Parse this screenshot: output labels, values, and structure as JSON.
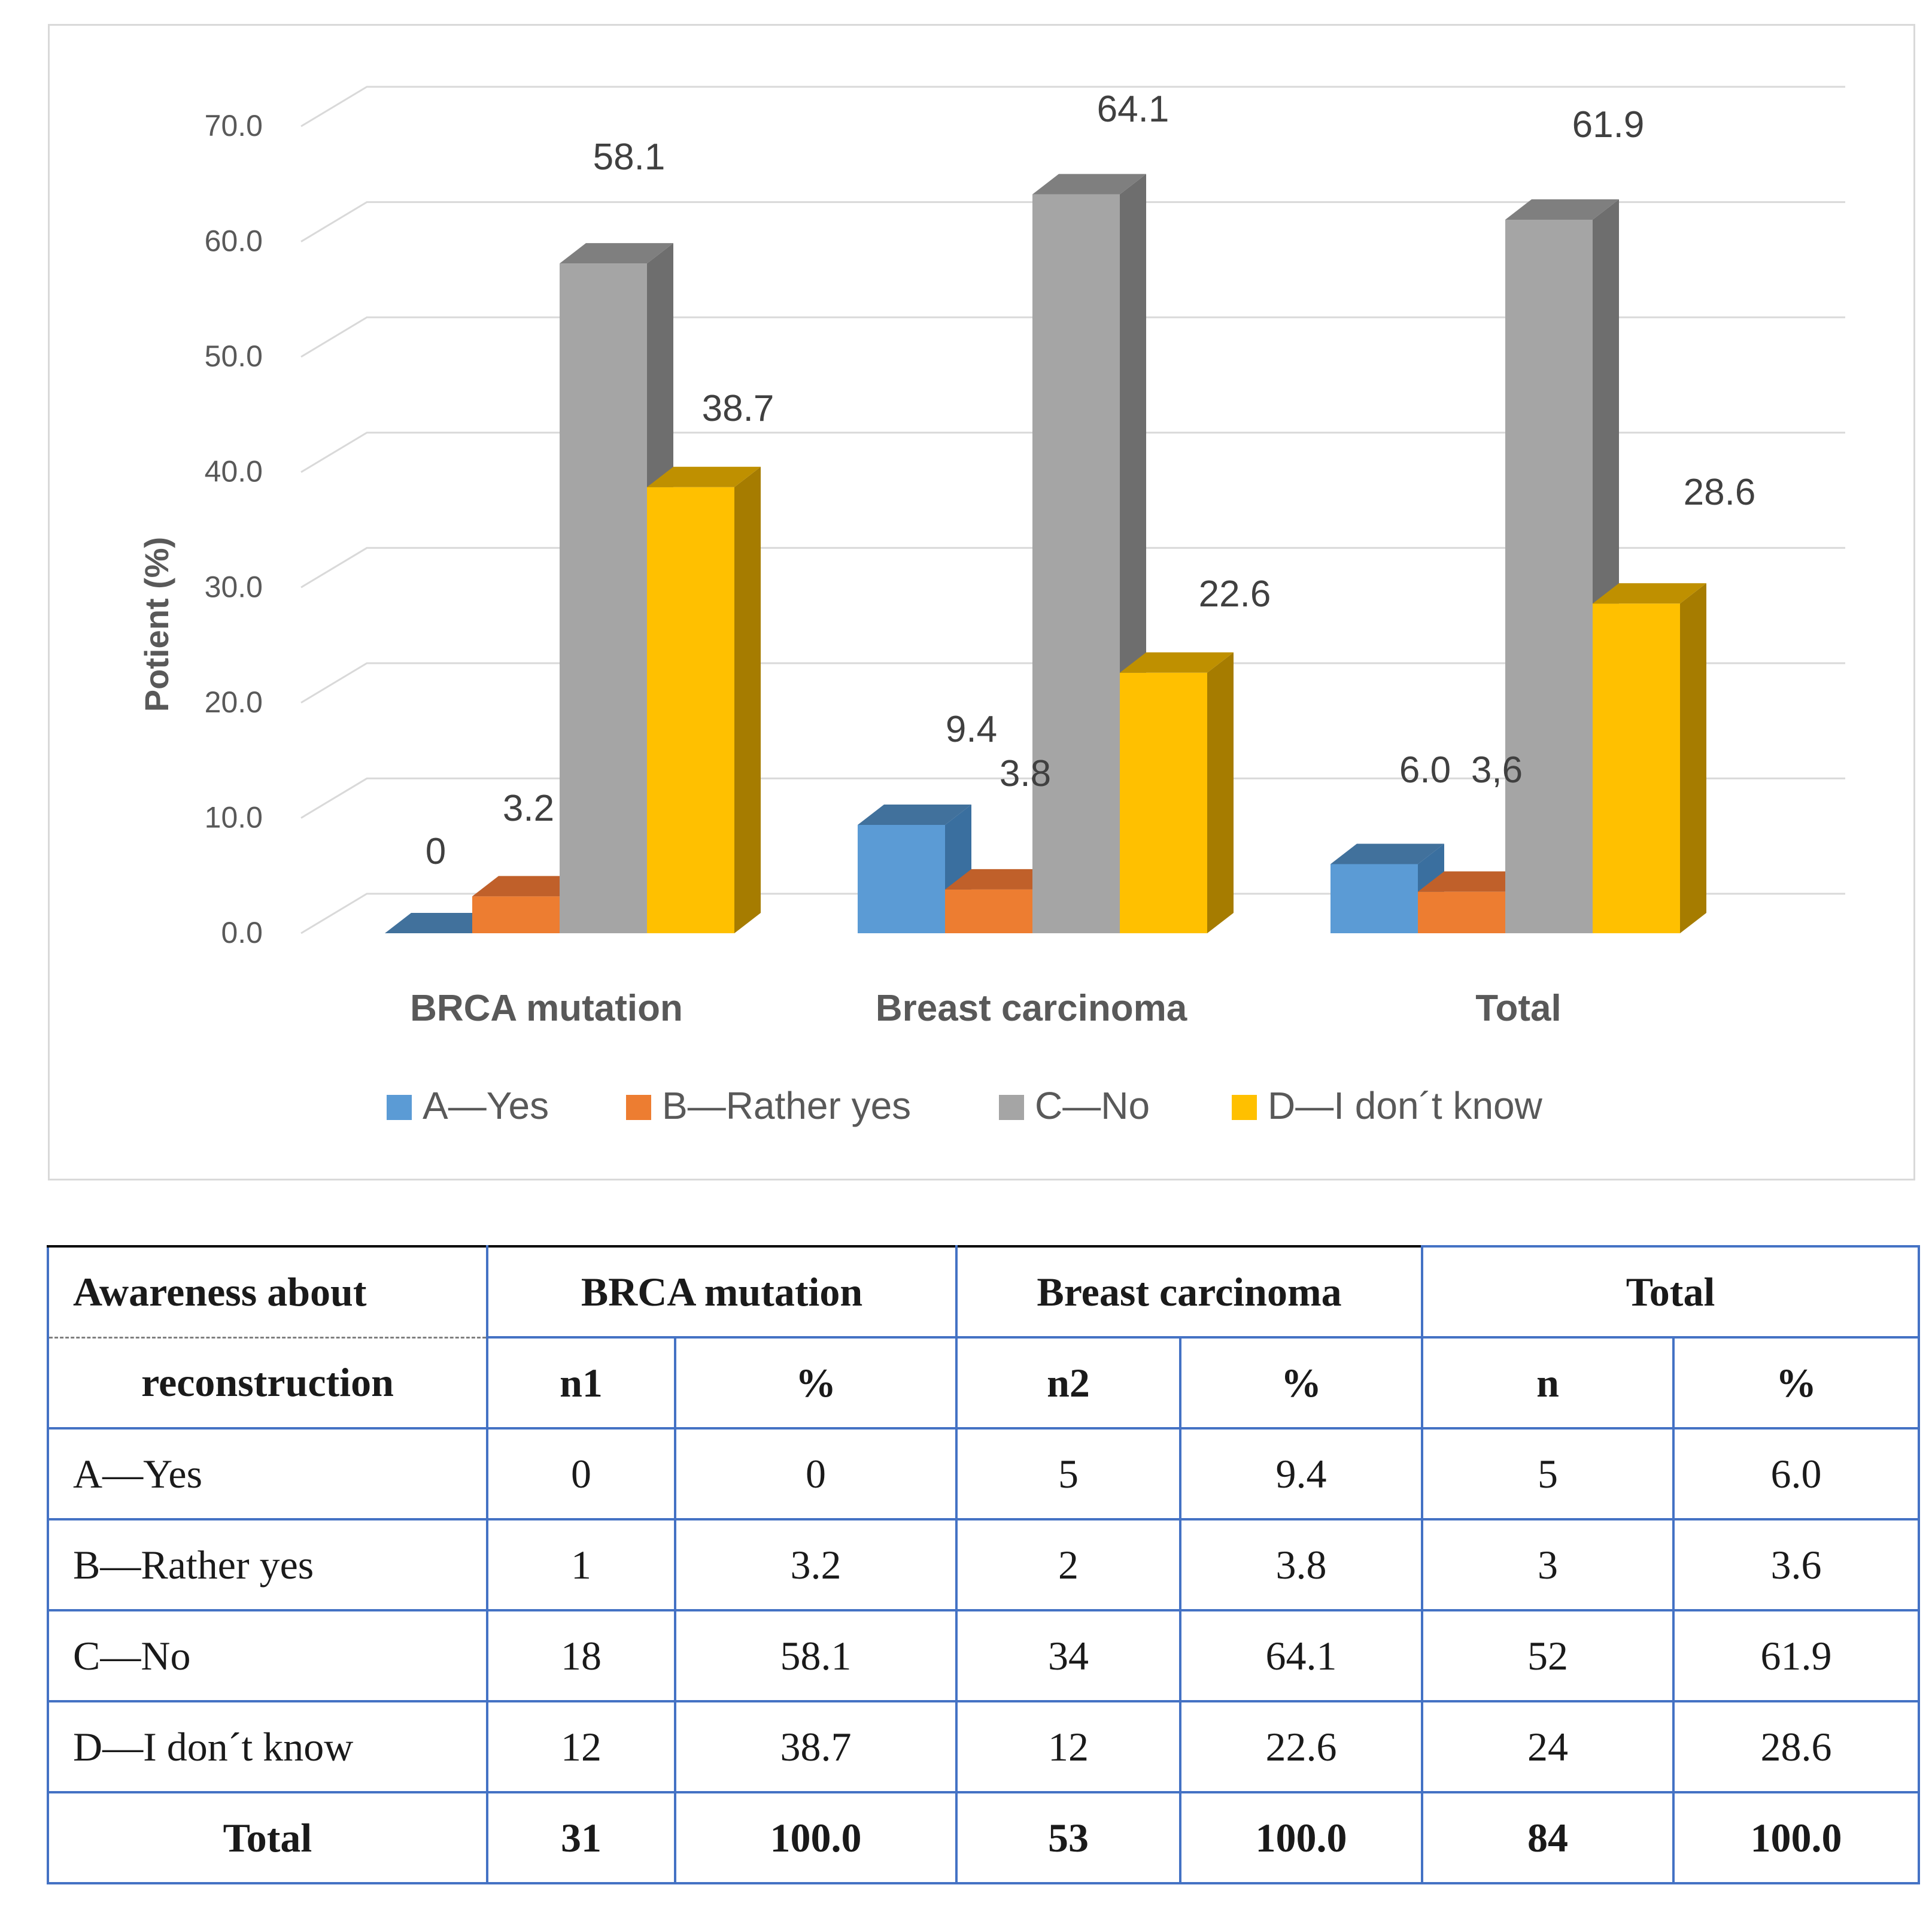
{
  "chart_data": {
    "type": "bar",
    "style": "3d-clustered-column",
    "categories": [
      "BRCA mutation",
      "Breast carcinoma",
      "Total"
    ],
    "series": [
      {
        "name": "A—Yes",
        "color": "#5b9bd5",
        "side_color": "#3a6f9f",
        "top_color": "#41719c",
        "values": [
          0,
          9.4,
          6.0
        ],
        "labels": [
          "0",
          "9.4",
          "6.0"
        ]
      },
      {
        "name": "B—Rather yes",
        "color": "#ed7d31",
        "side_color": "#a9561e",
        "top_color": "#c0602a",
        "values": [
          3.2,
          3.8,
          3.6
        ],
        "labels": [
          "3.2",
          "3.8",
          "3,6"
        ]
      },
      {
        "name": "C—No",
        "color": "#a5a5a5",
        "side_color": "#6e6e6e",
        "top_color": "#7f7f7f",
        "values": [
          58.1,
          64.1,
          61.9
        ],
        "labels": [
          "58.1",
          "64.1",
          "61.9"
        ]
      },
      {
        "name": "D—I don´t know",
        "color": "#ffc000",
        "side_color": "#a67c00",
        "top_color": "#bf9000",
        "values": [
          38.7,
          22.6,
          28.6
        ],
        "labels": [
          "38.7",
          "22.6",
          "28.6"
        ]
      }
    ],
    "ylabel": "Potient (%)",
    "xlabel": "",
    "ylim": [
      0,
      70
    ],
    "yticks": [
      "0.0",
      "10.0",
      "20.0",
      "30.0",
      "40.0",
      "50.0",
      "60.0",
      "70.0"
    ],
    "grid": true,
    "legend": "bottom"
  },
  "table": {
    "header_row1": {
      "label": "Awareness about",
      "groups": [
        "BRCA mutation",
        "Breast carcinoma",
        "Total"
      ]
    },
    "header_row2": {
      "label": "reconstruction",
      "cols": [
        "n1",
        "%",
        "n2",
        "%",
        "n",
        "%"
      ]
    },
    "rows": [
      {
        "label": "A—Yes",
        "cells": [
          "0",
          "0",
          "5",
          "9.4",
          "5",
          "6.0"
        ]
      },
      {
        "label": "B—Rather yes",
        "cells": [
          "1",
          "3.2",
          "2",
          "3.8",
          "3",
          "3.6"
        ]
      },
      {
        "label": "C—No",
        "cells": [
          "18",
          "58.1",
          "34",
          "64.1",
          "52",
          "61.9"
        ]
      },
      {
        "label": "D—I don´t know",
        "cells": [
          "12",
          "38.7",
          "12",
          "22.6",
          "24",
          "28.6"
        ]
      }
    ],
    "total_row": {
      "label": "Total",
      "cells": [
        "31",
        "100.0",
        "53",
        "100.0",
        "84",
        "100.0"
      ]
    }
  }
}
